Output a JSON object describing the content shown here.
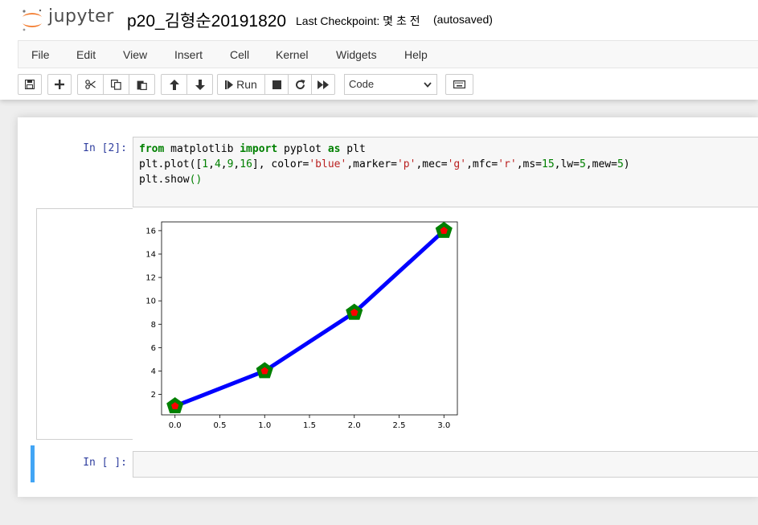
{
  "header": {
    "logo_text": "jupyter",
    "notebook_name": "p20_김형순20191820",
    "checkpoint": "Last Checkpoint: 몇 초 전",
    "autosave": "(autosaved)"
  },
  "menu": {
    "items": [
      "File",
      "Edit",
      "View",
      "Insert",
      "Cell",
      "Kernel",
      "Widgets",
      "Help"
    ]
  },
  "toolbar": {
    "run_label": "Run",
    "cell_type": "Code",
    "icons": [
      "save-icon",
      "plus-icon",
      "cut-icon",
      "copy-icon",
      "paste-icon",
      "arrow-up-icon",
      "arrow-down-icon",
      "step-forward-icon",
      "stop-icon",
      "restart-icon",
      "fast-forward-icon",
      "keyboard-icon"
    ]
  },
  "cells": [
    {
      "prompt": "In [2]:",
      "code": [
        "from matplotlib import pyplot as plt",
        "plt.plot([1,4,9,16], color='blue',marker='p',mec='g',mfc='r',ms=15,lw=5,mew=5)",
        "plt.show()"
      ]
    },
    {
      "prompt": "In [ ]:",
      "code": []
    }
  ],
  "chart_data": {
    "type": "line",
    "x": [
      0,
      1,
      2,
      3
    ],
    "series": [
      {
        "values": [
          1,
          4,
          9,
          16
        ],
        "color": "#0000ff",
        "marker": "pentagon",
        "marker_edge_color": "#008000",
        "marker_face_color": "#ff0000"
      }
    ],
    "xticks": [
      "0.0",
      "0.5",
      "1.0",
      "1.5",
      "2.0",
      "2.5",
      "3.0"
    ],
    "yticks": [
      "2",
      "4",
      "6",
      "8",
      "10",
      "12",
      "14",
      "16"
    ],
    "xlim": [
      -0.15,
      3.15
    ],
    "ylim": [
      0.25,
      16.75
    ],
    "title": "",
    "xlabel": "",
    "ylabel": "",
    "grid": false
  }
}
